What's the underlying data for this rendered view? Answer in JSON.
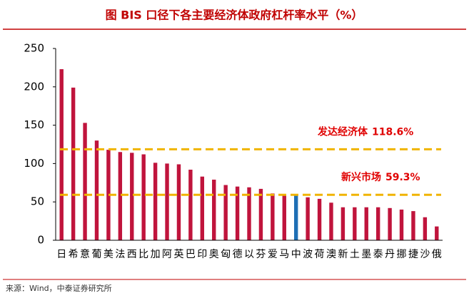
{
  "chart_data": {
    "type": "bar",
    "title": "图 BIS 口径下各主要经济体政府杠杆率水平（%）",
    "source": "来源：Wind，中泰证券研究所",
    "categories": [
      "日",
      "希",
      "意",
      "葡",
      "美",
      "法",
      "西",
      "比",
      "加",
      "阿",
      "英",
      "巴",
      "印",
      "奥",
      "匈",
      "德",
      "以",
      "芬",
      "爱",
      "马",
      "中",
      "波",
      "荷",
      "澳",
      "新",
      "土",
      "墨",
      "泰",
      "丹",
      "挪",
      "捷",
      "沙",
      "俄"
    ],
    "values": [
      223,
      199,
      153,
      130,
      118,
      115,
      114,
      112,
      101,
      100,
      99,
      92,
      83,
      79,
      72,
      70,
      69,
      67,
      61,
      60,
      60,
      56,
      54,
      49,
      43,
      43,
      43,
      43,
      42,
      40,
      38,
      30,
      18
    ],
    "colors": [
      "#c0143c",
      "#c0143c",
      "#c0143c",
      "#c0143c",
      "#c0143c",
      "#c0143c",
      "#c0143c",
      "#c0143c",
      "#c0143c",
      "#c0143c",
      "#c0143c",
      "#c0143c",
      "#c0143c",
      "#c0143c",
      "#c0143c",
      "#c0143c",
      "#c0143c",
      "#c0143c",
      "#c0143c",
      "#c0143c",
      "#1f6fb4",
      "#c0143c",
      "#c0143c",
      "#c0143c",
      "#c0143c",
      "#c0143c",
      "#c0143c",
      "#c0143c",
      "#c0143c",
      "#c0143c",
      "#c0143c",
      "#c0143c",
      "#c0143c"
    ],
    "reference_lines": [
      {
        "name": "发达经济体",
        "value": 118.6,
        "value_label": "118.6%",
        "color": "#f0b400"
      },
      {
        "name": "新兴市场",
        "value": 59.3,
        "value_label": "59.3%",
        "color": "#f0b400"
      }
    ],
    "ylim": [
      0,
      250
    ],
    "yticks": [
      0,
      50,
      100,
      150,
      200,
      250
    ],
    "grid": false
  }
}
